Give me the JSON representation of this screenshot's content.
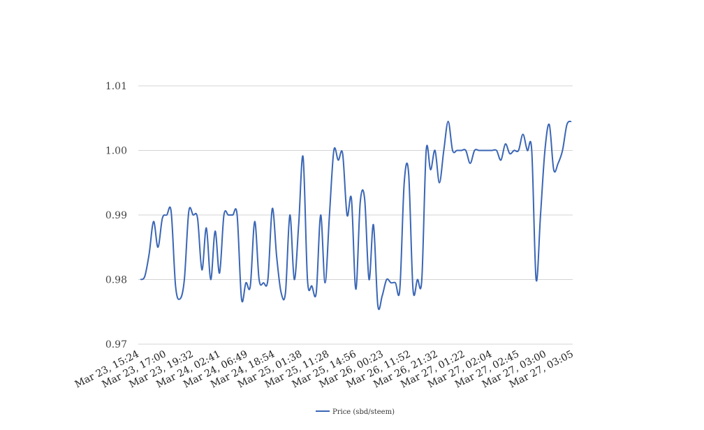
{
  "chart_data": {
    "type": "line",
    "title": "",
    "xlabel": "",
    "ylabel": "",
    "ylim": [
      0.97,
      1.01
    ],
    "yticks": [
      "0.97",
      "0.98",
      "0.99",
      "1.00",
      "1.01"
    ],
    "grid": true,
    "legend_position": "bottom-center",
    "x_tick_labels": [
      "Mar 23, 15:24",
      "Mar 23, 17:00",
      "Mar 23, 19:32",
      "Mar 24, 02:41",
      "Mar 24, 06:49",
      "Mar 24, 18:54",
      "Mar 25, 01:38",
      "Mar 25, 11:28",
      "Mar 25, 14:56",
      "Mar 26, 00:23",
      "Mar 26, 11:52",
      "Mar 26, 21:32",
      "Mar 27, 01:22",
      "Mar 27, 02:04",
      "Mar 27, 02:45",
      "Mar 27, 03:00",
      "Mar 27, 03:05"
    ],
    "series": [
      {
        "name": "Price (sbd/steem)",
        "color": "#3a66b5",
        "values": [
          0.98,
          0.9805,
          0.984,
          0.989,
          0.985,
          0.9895,
          0.99,
          0.9905,
          0.979,
          0.977,
          0.98,
          0.9905,
          0.99,
          0.9895,
          0.9815,
          0.988,
          0.98,
          0.9875,
          0.981,
          0.99,
          0.99,
          0.99,
          0.99,
          0.977,
          0.9795,
          0.979,
          0.989,
          0.98,
          0.9795,
          0.98,
          0.991,
          0.9835,
          0.978,
          0.978,
          0.99,
          0.98,
          0.9885,
          0.999,
          0.98,
          0.979,
          0.978,
          0.99,
          0.9795,
          0.99,
          1.0,
          0.9985,
          0.9995,
          0.99,
          0.9925,
          0.9785,
          0.992,
          0.9925,
          0.98,
          0.9885,
          0.976,
          0.9775,
          0.98,
          0.9795,
          0.9795,
          0.9785,
          0.995,
          0.9965,
          0.9785,
          0.98,
          0.98,
          1.0,
          0.997,
          1.0,
          0.995,
          1.0,
          1.0045,
          1.0,
          1.0,
          1.0,
          1.0,
          0.998,
          1.0,
          1.0,
          1.0,
          1.0,
          1.0,
          1.0,
          0.9985,
          1.001,
          0.9995,
          1.0,
          1.0,
          1.0025,
          1.0,
          1.0,
          0.98,
          0.99,
          1.0,
          1.004,
          0.997,
          0.998,
          1.0,
          1.004,
          1.0045
        ]
      }
    ]
  }
}
